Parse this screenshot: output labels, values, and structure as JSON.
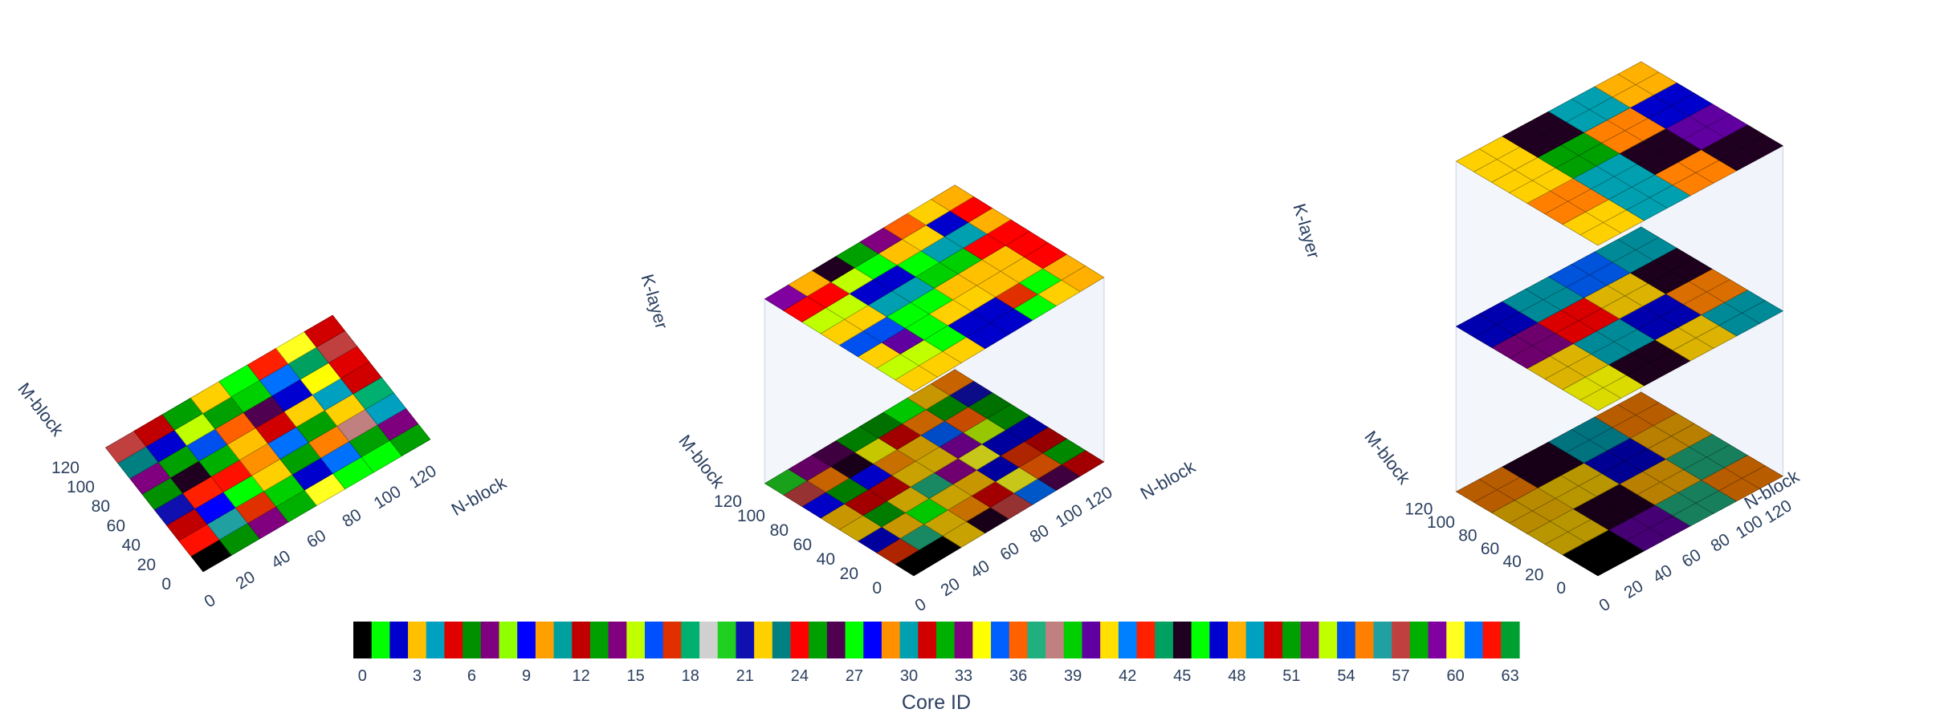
{
  "chart_data": [
    {
      "type": "heatmap",
      "title": "",
      "xlabel": "N-block",
      "ylabel": "M-block",
      "zlabel": "",
      "xticks": [
        0,
        20,
        40,
        60,
        80,
        100,
        120
      ],
      "yticks": [
        0,
        20,
        40,
        60,
        80,
        100,
        120
      ],
      "xlim": [
        0,
        128
      ],
      "ylim": [
        0,
        128
      ],
      "grid": 8,
      "layers": [
        [
          [
            0,
            6,
            33,
            58,
            60,
            1,
            27,
            51
          ],
          [
            62,
            56,
            17,
            39,
            2,
            61,
            13,
            7
          ],
          [
            12,
            28,
            1,
            22,
            51,
            55,
            38,
            4
          ],
          [
            21,
            43,
            62,
            29,
            61,
            51,
            22,
            18
          ],
          [
            6,
            45,
            58,
            3,
            31,
            22,
            4,
            50
          ],
          [
            14,
            51,
            54,
            36,
            26,
            47,
            34,
            5
          ],
          [
            23,
            47,
            15,
            25,
            39,
            61,
            44,
            57
          ],
          [
            57,
            12,
            25,
            22,
            1,
            43,
            60,
            31
          ]
        ]
      ]
    },
    {
      "type": "heatmap",
      "title": "",
      "xlabel": "N-block",
      "ylabel": "M-block",
      "zlabel": "K-layer",
      "xticks": [
        0,
        20,
        40,
        60,
        80,
        100,
        120
      ],
      "yticks": [
        0,
        20,
        40,
        60,
        80,
        100,
        120
      ],
      "xlim": [
        0,
        128
      ],
      "ylim": [
        0,
        128
      ],
      "grid": 8,
      "layers": [
        [
          [
            0,
            0,
            22,
            45,
            57,
            61,
            26,
            31
          ],
          [
            17,
            37,
            22,
            29,
            31,
            60,
            36,
            58
          ],
          [
            2,
            3,
            46,
            22,
            3,
            2,
            17,
            12
          ],
          [
            22,
            13,
            22,
            37,
            52,
            60,
            2,
            2
          ],
          [
            3,
            31,
            31,
            22,
            22,
            59,
            15,
            25
          ],
          [
            28,
            13,
            28,
            29,
            3,
            35,
            36,
            6
          ],
          [
            57,
            55,
            45,
            34,
            31,
            55,
            51,
            21
          ],
          [
            20,
            14,
            26,
            13,
            6,
            27,
            3,
            55
          ]
        ],
        [
          [
            22,
            22,
            22,
            2,
            2,
            27,
            22,
            48
          ],
          [
            15,
            15,
            27,
            2,
            2,
            17,
            27,
            48
          ],
          [
            22,
            40,
            27,
            22,
            22,
            3,
            3,
            24
          ],
          [
            54,
            54,
            27,
            27,
            3,
            3,
            3,
            24
          ],
          [
            22,
            22,
            30,
            30,
            39,
            39,
            24,
            24
          ],
          [
            15,
            15,
            2,
            2,
            27,
            30,
            30,
            48
          ],
          [
            24,
            24,
            15,
            27,
            3,
            22,
            2,
            24
          ],
          [
            59,
            48,
            45,
            51,
            33,
            36,
            22,
            48
          ]
        ]
      ]
    },
    {
      "type": "heatmap",
      "title": "",
      "xlabel": "N-block",
      "ylabel": "M-block",
      "zlabel": "K-layer",
      "xticks": [
        0,
        20,
        40,
        60,
        80,
        100,
        120
      ],
      "yticks": [
        0,
        20,
        40,
        60,
        80,
        100,
        120
      ],
      "xlim": [
        0,
        128
      ],
      "ylim": [
        0,
        128
      ],
      "grid": 8,
      "layers": [
        [
          [
            0,
            0,
            40,
            40,
            37,
            37,
            55,
            55
          ],
          [
            0,
            0,
            40,
            40,
            37,
            37,
            55,
            55
          ],
          [
            22,
            22,
            45,
            45,
            48,
            48,
            37,
            37
          ],
          [
            22,
            22,
            45,
            45,
            48,
            48,
            37,
            37
          ],
          [
            3,
            3,
            22,
            22,
            2,
            2,
            48,
            48
          ],
          [
            3,
            3,
            22,
            22,
            2,
            2,
            48,
            48
          ],
          [
            55,
            55,
            45,
            45,
            30,
            30,
            55,
            55
          ],
          [
            55,
            55,
            45,
            45,
            30,
            30,
            55,
            55
          ]
        ],
        [
          [
            34,
            34,
            45,
            45,
            22,
            22,
            30,
            30
          ],
          [
            34,
            34,
            45,
            45,
            22,
            22,
            30,
            30
          ],
          [
            22,
            22,
            30,
            30,
            2,
            2,
            55,
            55
          ],
          [
            22,
            22,
            30,
            30,
            2,
            2,
            55,
            55
          ],
          [
            33,
            33,
            24,
            24,
            22,
            22,
            45,
            45
          ],
          [
            33,
            33,
            24,
            24,
            22,
            22,
            45,
            45
          ],
          [
            2,
            2,
            30,
            30,
            35,
            35,
            30,
            30
          ],
          [
            2,
            2,
            30,
            30,
            35,
            35,
            30,
            30
          ]
        ],
        [
          [
            22,
            22,
            30,
            30,
            55,
            55,
            45,
            45
          ],
          [
            22,
            22,
            30,
            30,
            55,
            55,
            45,
            45
          ],
          [
            55,
            55,
            30,
            30,
            45,
            45,
            40,
            40
          ],
          [
            55,
            55,
            30,
            30,
            45,
            45,
            40,
            40
          ],
          [
            22,
            22,
            51,
            51,
            55,
            55,
            2,
            2
          ],
          [
            22,
            22,
            51,
            51,
            55,
            55,
            2,
            2
          ],
          [
            22,
            22,
            45,
            45,
            30,
            30,
            48,
            48
          ],
          [
            22,
            22,
            45,
            45,
            30,
            30,
            48,
            48
          ]
        ]
      ]
    }
  ],
  "colorbar": {
    "title": "Core ID",
    "min": 0,
    "max": 63,
    "ticks": [
      0,
      3,
      6,
      9,
      12,
      15,
      18,
      21,
      24,
      27,
      30,
      33,
      36,
      39,
      42,
      45,
      48,
      51,
      54,
      57,
      60,
      63
    ],
    "colors": [
      "#000000",
      "#00ff00",
      "#0000cc",
      "#ffc000",
      "#00a0c0",
      "#e00000",
      "#009000",
      "#7f007f",
      "#90ff00",
      "#0000ff",
      "#ffa000",
      "#00a0a0",
      "#c00000",
      "#00a000",
      "#800080",
      "#c0ff00",
      "#0050ff",
      "#e03000",
      "#00b070",
      "#d0d0d0",
      "#20d020",
      "#1010b0",
      "#ffd000",
      "#008080",
      "#ff0000",
      "#00a000",
      "#500050",
      "#00ff00",
      "#0000ff",
      "#ff9000",
      "#00a0b0",
      "#d00000",
      "#00b000",
      "#800080",
      "#ffff00",
      "#0060ff",
      "#ff6000",
      "#20b080",
      "#c08080",
      "#00d000",
      "#6000a0",
      "#ffe000",
      "#0080ff",
      "#ff2000",
      "#00a060",
      "#200020",
      "#00ff00",
      "#0000d0",
      "#ffb000",
      "#00a0c0",
      "#d00000",
      "#00a000",
      "#900090",
      "#c0ff00",
      "#0050f0",
      "#ff8000",
      "#20a0a0",
      "#c04040",
      "#00b000",
      "#8000a0",
      "#ffff20",
      "#0070ff",
      "#ff1000",
      "#00a030"
    ]
  }
}
